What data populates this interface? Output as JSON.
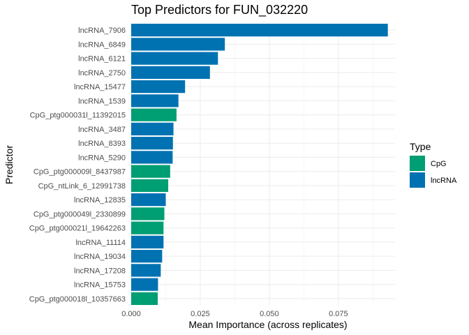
{
  "chart_data": {
    "type": "bar",
    "orientation": "horizontal",
    "title": "Top Predictors for FUN_032220",
    "xlabel": "Mean Importance (across replicates)",
    "ylabel": "Predictor",
    "xlim": [
      0,
      0.0955
    ],
    "x_ticks": [
      0,
      0.025,
      0.05,
      0.075
    ],
    "x_tick_labels": [
      "0.000",
      "0.025",
      "0.050",
      "0.075"
    ],
    "grid": true,
    "legend": {
      "title": "Type",
      "position": "right",
      "entries": [
        {
          "label": "CpG",
          "color": "#009E73"
        },
        {
          "label": "lncRNA",
          "color": "#0072B2"
        }
      ]
    },
    "categories": [
      "lncRNA_7906",
      "lncRNA_6849",
      "lncRNA_6121",
      "lncRNA_2750",
      "lncRNA_15477",
      "lncRNA_1539",
      "CpG_ptg000031l_11392015",
      "lncRNA_3487",
      "lncRNA_8393",
      "lncRNA_5290",
      "CpG_ptg000009l_8437987",
      "CpG_ntLink_6_12991738",
      "lncRNA_12835",
      "CpG_ptg000049l_2330899",
      "CpG_ptg000021l_19642263",
      "lncRNA_11114",
      "lncRNA_19034",
      "lncRNA_17208",
      "lncRNA_15753",
      "CpG_ptg000018l_10357663"
    ],
    "values": [
      0.0929,
      0.0339,
      0.0314,
      0.0285,
      0.0195,
      0.0171,
      0.0164,
      0.0153,
      0.0151,
      0.015,
      0.0141,
      0.0134,
      0.0125,
      0.012,
      0.0117,
      0.0117,
      0.0112,
      0.0107,
      0.0097,
      0.0096
    ],
    "types": [
      "lncRNA",
      "lncRNA",
      "lncRNA",
      "lncRNA",
      "lncRNA",
      "lncRNA",
      "CpG",
      "lncRNA",
      "lncRNA",
      "lncRNA",
      "CpG",
      "CpG",
      "lncRNA",
      "CpG",
      "CpG",
      "lncRNA",
      "lncRNA",
      "lncRNA",
      "lncRNA",
      "CpG"
    ]
  }
}
